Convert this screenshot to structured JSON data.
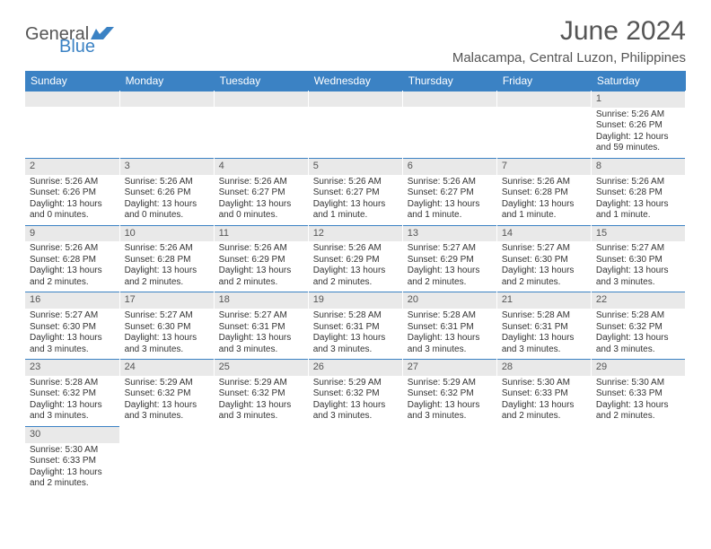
{
  "logo": {
    "text1": "General",
    "text2": "Blue"
  },
  "title": "June 2024",
  "location": "Malacampa, Central Luzon, Philippines",
  "colors": {
    "header_bg": "#3b82c4",
    "header_fg": "#ffffff",
    "daynum_bg": "#e9e9e9",
    "text": "#333333",
    "title": "#555555"
  },
  "typography": {
    "title_fontsize": 30,
    "location_fontsize": 15,
    "dayhead_fontsize": 12,
    "body_fontsize": 10
  },
  "weekdays": [
    "Sunday",
    "Monday",
    "Tuesday",
    "Wednesday",
    "Thursday",
    "Friday",
    "Saturday"
  ],
  "weeks": [
    [
      null,
      null,
      null,
      null,
      null,
      null,
      {
        "n": "1",
        "sr": "Sunrise: 5:26 AM",
        "ss": "Sunset: 6:26 PM",
        "dl": "Daylight: 12 hours and 59 minutes."
      }
    ],
    [
      {
        "n": "2",
        "sr": "Sunrise: 5:26 AM",
        "ss": "Sunset: 6:26 PM",
        "dl": "Daylight: 13 hours and 0 minutes."
      },
      {
        "n": "3",
        "sr": "Sunrise: 5:26 AM",
        "ss": "Sunset: 6:26 PM",
        "dl": "Daylight: 13 hours and 0 minutes."
      },
      {
        "n": "4",
        "sr": "Sunrise: 5:26 AM",
        "ss": "Sunset: 6:27 PM",
        "dl": "Daylight: 13 hours and 0 minutes."
      },
      {
        "n": "5",
        "sr": "Sunrise: 5:26 AM",
        "ss": "Sunset: 6:27 PM",
        "dl": "Daylight: 13 hours and 1 minute."
      },
      {
        "n": "6",
        "sr": "Sunrise: 5:26 AM",
        "ss": "Sunset: 6:27 PM",
        "dl": "Daylight: 13 hours and 1 minute."
      },
      {
        "n": "7",
        "sr": "Sunrise: 5:26 AM",
        "ss": "Sunset: 6:28 PM",
        "dl": "Daylight: 13 hours and 1 minute."
      },
      {
        "n": "8",
        "sr": "Sunrise: 5:26 AM",
        "ss": "Sunset: 6:28 PM",
        "dl": "Daylight: 13 hours and 1 minute."
      }
    ],
    [
      {
        "n": "9",
        "sr": "Sunrise: 5:26 AM",
        "ss": "Sunset: 6:28 PM",
        "dl": "Daylight: 13 hours and 2 minutes."
      },
      {
        "n": "10",
        "sr": "Sunrise: 5:26 AM",
        "ss": "Sunset: 6:28 PM",
        "dl": "Daylight: 13 hours and 2 minutes."
      },
      {
        "n": "11",
        "sr": "Sunrise: 5:26 AM",
        "ss": "Sunset: 6:29 PM",
        "dl": "Daylight: 13 hours and 2 minutes."
      },
      {
        "n": "12",
        "sr": "Sunrise: 5:26 AM",
        "ss": "Sunset: 6:29 PM",
        "dl": "Daylight: 13 hours and 2 minutes."
      },
      {
        "n": "13",
        "sr": "Sunrise: 5:27 AM",
        "ss": "Sunset: 6:29 PM",
        "dl": "Daylight: 13 hours and 2 minutes."
      },
      {
        "n": "14",
        "sr": "Sunrise: 5:27 AM",
        "ss": "Sunset: 6:30 PM",
        "dl": "Daylight: 13 hours and 2 minutes."
      },
      {
        "n": "15",
        "sr": "Sunrise: 5:27 AM",
        "ss": "Sunset: 6:30 PM",
        "dl": "Daylight: 13 hours and 3 minutes."
      }
    ],
    [
      {
        "n": "16",
        "sr": "Sunrise: 5:27 AM",
        "ss": "Sunset: 6:30 PM",
        "dl": "Daylight: 13 hours and 3 minutes."
      },
      {
        "n": "17",
        "sr": "Sunrise: 5:27 AM",
        "ss": "Sunset: 6:30 PM",
        "dl": "Daylight: 13 hours and 3 minutes."
      },
      {
        "n": "18",
        "sr": "Sunrise: 5:27 AM",
        "ss": "Sunset: 6:31 PM",
        "dl": "Daylight: 13 hours and 3 minutes."
      },
      {
        "n": "19",
        "sr": "Sunrise: 5:28 AM",
        "ss": "Sunset: 6:31 PM",
        "dl": "Daylight: 13 hours and 3 minutes."
      },
      {
        "n": "20",
        "sr": "Sunrise: 5:28 AM",
        "ss": "Sunset: 6:31 PM",
        "dl": "Daylight: 13 hours and 3 minutes."
      },
      {
        "n": "21",
        "sr": "Sunrise: 5:28 AM",
        "ss": "Sunset: 6:31 PM",
        "dl": "Daylight: 13 hours and 3 minutes."
      },
      {
        "n": "22",
        "sr": "Sunrise: 5:28 AM",
        "ss": "Sunset: 6:32 PM",
        "dl": "Daylight: 13 hours and 3 minutes."
      }
    ],
    [
      {
        "n": "23",
        "sr": "Sunrise: 5:28 AM",
        "ss": "Sunset: 6:32 PM",
        "dl": "Daylight: 13 hours and 3 minutes."
      },
      {
        "n": "24",
        "sr": "Sunrise: 5:29 AM",
        "ss": "Sunset: 6:32 PM",
        "dl": "Daylight: 13 hours and 3 minutes."
      },
      {
        "n": "25",
        "sr": "Sunrise: 5:29 AM",
        "ss": "Sunset: 6:32 PM",
        "dl": "Daylight: 13 hours and 3 minutes."
      },
      {
        "n": "26",
        "sr": "Sunrise: 5:29 AM",
        "ss": "Sunset: 6:32 PM",
        "dl": "Daylight: 13 hours and 3 minutes."
      },
      {
        "n": "27",
        "sr": "Sunrise: 5:29 AM",
        "ss": "Sunset: 6:32 PM",
        "dl": "Daylight: 13 hours and 3 minutes."
      },
      {
        "n": "28",
        "sr": "Sunrise: 5:30 AM",
        "ss": "Sunset: 6:33 PM",
        "dl": "Daylight: 13 hours and 2 minutes."
      },
      {
        "n": "29",
        "sr": "Sunrise: 5:30 AM",
        "ss": "Sunset: 6:33 PM",
        "dl": "Daylight: 13 hours and 2 minutes."
      }
    ],
    [
      {
        "n": "30",
        "sr": "Sunrise: 5:30 AM",
        "ss": "Sunset: 6:33 PM",
        "dl": "Daylight: 13 hours and 2 minutes."
      },
      null,
      null,
      null,
      null,
      null,
      null
    ]
  ]
}
